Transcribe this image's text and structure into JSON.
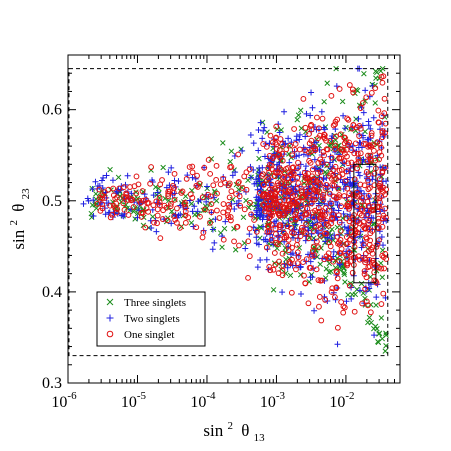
{
  "chart_data": {
    "type": "scatter",
    "xscale": "log",
    "xlim": [
      1e-06,
      0.06
    ],
    "ylim": [
      0.3,
      0.66
    ],
    "x_tick_labels": [
      {
        "value": 1e-06,
        "base": "10",
        "exp": "-6"
      },
      {
        "value": 1e-05,
        "base": "10",
        "exp": "-5"
      },
      {
        "value": 0.0001,
        "base": "10",
        "exp": "-4"
      },
      {
        "value": 0.001,
        "base": "10",
        "exp": "-3"
      },
      {
        "value": 0.01,
        "base": "10",
        "exp": "-2"
      }
    ],
    "y_ticks": [
      0.3,
      0.4,
      0.5,
      0.6
    ],
    "y_tick_labels": [
      "0.3",
      "0.4",
      "0.5",
      "0.6"
    ],
    "xlabel": {
      "prefix": "sin",
      "sup": "2",
      "symbol": "θ",
      "sub": "13"
    },
    "ylabel": {
      "prefix": "sin",
      "sup": "2",
      "symbol": "θ",
      "sub": "23"
    },
    "grid": false,
    "legend_position": "bottom-left",
    "allowed_region_dashed": {
      "x": [
        1e-06,
        0.04
      ],
      "y": [
        0.33,
        0.645
      ]
    },
    "allowed_region_solid": {
      "x": [
        0.013,
        0.027
      ],
      "y": [
        0.41,
        0.54
      ]
    },
    "series": [
      {
        "name": "Three singlets",
        "marker": "x",
        "color": "#1a8c1a",
        "approx_count": 450
      },
      {
        "name": "Two singlets",
        "marker": "+",
        "color": "#1f1fe0",
        "approx_count": 750
      },
      {
        "name": "One singlet",
        "marker": "o",
        "color": "#e01010",
        "approx_count": 850
      }
    ],
    "point_distribution": "Points spread over x from about 2e-6 to 0.04; most points at x > 1e-3 spanning y from 0.33 to 0.645; at lower x they funnel toward y ≈ 0.5 with spread ±0.05 near x=1e-5"
  }
}
